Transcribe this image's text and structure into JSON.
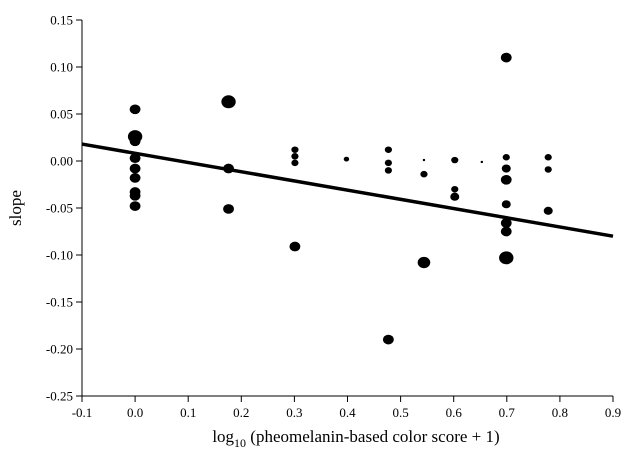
{
  "chart_data": {
    "type": "scatter",
    "title": "",
    "xlabel": {
      "prefix": "log",
      "subscript": "10",
      "text": " (pheomelanin-based color score + 1)"
    },
    "ylabel": "slope",
    "xlim": [
      -0.1,
      0.9
    ],
    "ylim": [
      -0.25,
      0.15
    ],
    "x_ticks": [
      -0.1,
      0.0,
      0.1,
      0.2,
      0.3,
      0.4,
      0.5,
      0.6,
      0.7,
      0.8,
      0.9
    ],
    "x_tick_labels": [
      "-0.1",
      "0.0",
      "0.1",
      "0.2",
      "0.3",
      "0.4",
      "0.5",
      "0.6",
      "0.7",
      "0.8",
      "0.9"
    ],
    "y_ticks": [
      -0.25,
      -0.2,
      -0.15,
      -0.1,
      -0.05,
      0.0,
      0.05,
      0.1,
      0.15
    ],
    "y_tick_labels": [
      "-0.25",
      "-0.20",
      "-0.15",
      "-0.10",
      "-0.05",
      "0.00",
      "0.05",
      "0.10",
      "0.15"
    ],
    "grid": false,
    "legend": "none",
    "marker_color": "#000000",
    "points": [
      {
        "x": 0.0,
        "y": 0.055,
        "size": 3
      },
      {
        "x": 0.0,
        "y": 0.026,
        "size": 4
      },
      {
        "x": 0.0,
        "y": 0.021,
        "size": 3
      },
      {
        "x": 0.0,
        "y": 0.003,
        "size": 3
      },
      {
        "x": 0.0,
        "y": -0.008,
        "size": 3
      },
      {
        "x": 0.0,
        "y": -0.018,
        "size": 3
      },
      {
        "x": 0.0,
        "y": -0.033,
        "size": 3
      },
      {
        "x": 0.0,
        "y": -0.037,
        "size": 3
      },
      {
        "x": 0.0,
        "y": -0.048,
        "size": 3
      },
      {
        "x": 0.176,
        "y": 0.063,
        "size": 4
      },
      {
        "x": 0.176,
        "y": -0.008,
        "size": 3
      },
      {
        "x": 0.176,
        "y": -0.051,
        "size": 3
      },
      {
        "x": 0.301,
        "y": 0.012,
        "size": 2
      },
      {
        "x": 0.301,
        "y": 0.005,
        "size": 2
      },
      {
        "x": 0.301,
        "y": -0.002,
        "size": 2
      },
      {
        "x": 0.301,
        "y": -0.091,
        "size": 3
      },
      {
        "x": 0.398,
        "y": 0.002,
        "size": 1.5
      },
      {
        "x": 0.477,
        "y": 0.012,
        "size": 2
      },
      {
        "x": 0.477,
        "y": -0.002,
        "size": 2
      },
      {
        "x": 0.477,
        "y": -0.01,
        "size": 2
      },
      {
        "x": 0.477,
        "y": -0.19,
        "size": 3
      },
      {
        "x": 0.544,
        "y": 0.001,
        "size": 0.7
      },
      {
        "x": 0.544,
        "y": -0.014,
        "size": 2
      },
      {
        "x": 0.544,
        "y": -0.108,
        "size": 3.5
      },
      {
        "x": 0.602,
        "y": 0.001,
        "size": 2
      },
      {
        "x": 0.602,
        "y": -0.03,
        "size": 2
      },
      {
        "x": 0.602,
        "y": -0.038,
        "size": 2.5
      },
      {
        "x": 0.653,
        "y": -0.001,
        "size": 0.7
      },
      {
        "x": 0.699,
        "y": 0.11,
        "size": 3
      },
      {
        "x": 0.699,
        "y": 0.004,
        "size": 2
      },
      {
        "x": 0.699,
        "y": -0.008,
        "size": 2.5
      },
      {
        "x": 0.699,
        "y": -0.02,
        "size": 3
      },
      {
        "x": 0.699,
        "y": -0.046,
        "size": 2.5
      },
      {
        "x": 0.699,
        "y": -0.066,
        "size": 3
      },
      {
        "x": 0.699,
        "y": -0.075,
        "size": 3
      },
      {
        "x": 0.699,
        "y": -0.103,
        "size": 4
      },
      {
        "x": 0.778,
        "y": 0.004,
        "size": 2
      },
      {
        "x": 0.778,
        "y": -0.009,
        "size": 2
      },
      {
        "x": 0.778,
        "y": -0.053,
        "size": 2.5
      }
    ],
    "regression_line": {
      "x": [
        -0.1,
        0.9
      ],
      "y": [
        0.018,
        -0.08
      ]
    }
  }
}
